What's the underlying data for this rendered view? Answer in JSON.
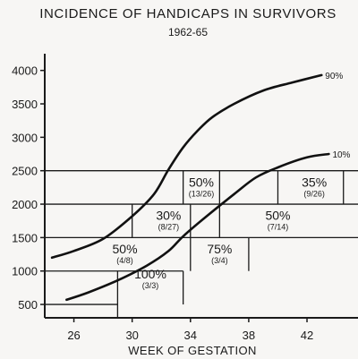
{
  "chart_data": {
    "type": "line",
    "title": "INCIDENCE OF HANDICAPS IN SURVIVORS",
    "subtitle": "1962-65",
    "xlabel": "WEEK OF GESTATION",
    "ylabel": "",
    "xlim": [
      24,
      45.5
    ],
    "ylim": [
      300,
      4250
    ],
    "xticks": [
      26,
      30,
      34,
      38,
      42
    ],
    "xtick_labels": [
      "26",
      "30",
      "34",
      "38",
      "42"
    ],
    "yticks": [
      500,
      1000,
      1500,
      2000,
      2500,
      3000,
      3500,
      4000
    ],
    "ytick_labels": [
      "500",
      "1000",
      "1500",
      "2000",
      "2500",
      "3000",
      "3500",
      "4000"
    ],
    "grid": false,
    "series": [
      {
        "name": "90%",
        "x": [
          24.5,
          26,
          28,
          30,
          31.5,
          32.5,
          33.5,
          34.5,
          35.5,
          37,
          39,
          41,
          43
        ],
        "y": [
          1200,
          1300,
          1480,
          1820,
          2150,
          2520,
          2850,
          3100,
          3300,
          3500,
          3700,
          3820,
          3930
        ]
      },
      {
        "name": "10%",
        "x": [
          25.5,
          27,
          29,
          31,
          32.5,
          33.5,
          35,
          37,
          38.5,
          40,
          42,
          43.5
        ],
        "y": [
          570,
          680,
          860,
          1080,
          1300,
          1520,
          1800,
          2150,
          2400,
          2550,
          2700,
          2750
        ]
      }
    ],
    "cells": [
      {
        "pct": "100%",
        "frac": "(3/3)",
        "x": [
          29,
          33.5
        ],
        "y": [
          750,
          1000
        ]
      },
      {
        "pct": "50%",
        "frac": "(4/8)",
        "x": [
          29,
          30
        ],
        "y": [
          1000,
          1500
        ]
      },
      {
        "pct": "75%",
        "frac": "(3/4)",
        "x": [
          34,
          38
        ],
        "y": [
          1000,
          1500
        ]
      },
      {
        "pct": "30%",
        "frac": "(8/27)",
        "x": [
          31,
          34
        ],
        "y": [
          1500,
          2000
        ]
      },
      {
        "pct": "50%",
        "frac": "(7/14)",
        "x": [
          38,
          42
        ],
        "y": [
          1500,
          2000
        ]
      },
      {
        "pct": "50%",
        "frac": "(13/26)",
        "x": [
          33.5,
          36
        ],
        "y": [
          2000,
          2500
        ]
      },
      {
        "pct": "35%",
        "frac": "(9/26)",
        "x": [
          40,
          45
        ],
        "y": [
          2000,
          2500
        ]
      }
    ],
    "grid_lines": {
      "h": [
        {
          "y": 500,
          "x": [
            24,
            29
          ]
        },
        {
          "y": 1000,
          "x": [
            24,
            33.5
          ]
        },
        {
          "y": 1500,
          "x": [
            24,
            45.5
          ]
        },
        {
          "y": 2000,
          "x": [
            24,
            45.5
          ]
        },
        {
          "y": 2500,
          "x": [
            24,
            45.5
          ]
        }
      ],
      "v": [
        {
          "x": 29,
          "y": [
            300,
            1000
          ]
        },
        {
          "x": 33.5,
          "y": [
            500,
            1000
          ]
        },
        {
          "x": 30,
          "y": [
            1500,
            2000
          ]
        },
        {
          "x": 34,
          "y": [
            1000,
            2000
          ]
        },
        {
          "x": 38,
          "y": [
            1000,
            1500
          ]
        },
        {
          "x": 36,
          "y": [
            1500,
            2000
          ]
        },
        {
          "x": 33.5,
          "y": [
            2000,
            2500
          ]
        },
        {
          "x": 36,
          "y": [
            2000,
            2500
          ]
        },
        {
          "x": 40,
          "y": [
            2000,
            2500
          ]
        },
        {
          "x": 44.5,
          "y": [
            2000,
            2500
          ]
        }
      ]
    }
  }
}
